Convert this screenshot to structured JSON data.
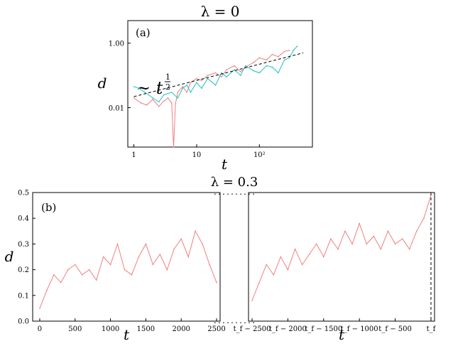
{
  "chart_data": [
    {
      "type": "line",
      "panel_label": "(a)",
      "title": "λ = 0",
      "xlabel": "t",
      "ylabel": "d",
      "x_scale": "log",
      "y_scale": "log",
      "xlim": [
        0.8,
        700
      ],
      "ylim": [
        0.0006,
        5
      ],
      "x_ticks": [
        1,
        10,
        100
      ],
      "x_tick_labels": [
        "1",
        "10",
        "10²"
      ],
      "y_ticks": [
        0.01,
        1
      ],
      "y_tick_labels": [
        "0.01",
        "1.00"
      ],
      "annotation": "~ t^(1/2)",
      "reference_line": {
        "style": "dashed",
        "color": "#000000",
        "x": [
          1,
          500
        ],
        "y": [
          0.022,
          0.5
        ]
      },
      "series": [
        {
          "color": "#f07f7f",
          "x": [
            1,
            1.3,
            1.6,
            2,
            2.5,
            3,
            3.5,
            4,
            4.3,
            4.6,
            5,
            6,
            7,
            8,
            10,
            12,
            15,
            20,
            25,
            30,
            40,
            50,
            60,
            80,
            100,
            130,
            160,
            200,
            250,
            300
          ],
          "y": [
            0.02,
            0.014,
            0.012,
            0.018,
            0.011,
            0.016,
            0.02,
            0.014,
            0.0006,
            0.013,
            0.03,
            0.045,
            0.03,
            0.06,
            0.08,
            0.07,
            0.1,
            0.12,
            0.09,
            0.15,
            0.2,
            0.13,
            0.18,
            0.25,
            0.35,
            0.3,
            0.45,
            0.38,
            0.55,
            0.6
          ]
        },
        {
          "color": "#20c0c0",
          "x": [
            1,
            1.2,
            1.5,
            2,
            2.5,
            3,
            4,
            5,
            6,
            7,
            8,
            10,
            12,
            15,
            20,
            25,
            30,
            40,
            50,
            60,
            80,
            100,
            130,
            160,
            200,
            250,
            300,
            350,
            400
          ],
          "y": [
            0.045,
            0.04,
            0.03,
            0.02,
            0.015,
            0.025,
            0.03,
            0.02,
            0.04,
            0.05,
            0.03,
            0.06,
            0.04,
            0.08,
            0.05,
            0.12,
            0.09,
            0.15,
            0.1,
            0.2,
            0.14,
            0.12,
            0.2,
            0.18,
            0.12,
            0.3,
            0.35,
            0.6,
            0.8
          ]
        }
      ]
    },
    {
      "type": "line",
      "panel_label": "(b)",
      "title": "λ = 0.3",
      "xlabel": "t",
      "ylabel": "d",
      "ylim": [
        0,
        0.5
      ],
      "y_ticks": [
        0,
        0.1,
        0.2,
        0.3,
        0.4,
        0.5
      ],
      "y_tick_labels": [
        "0.0",
        "0.1",
        "0.2",
        "0.3",
        "0.4",
        "0.5"
      ],
      "break_marker": "..........",
      "left_segment": {
        "xlim": [
          -100,
          2550
        ],
        "x_ticks": [
          0,
          500,
          1000,
          1500,
          2000,
          2500
        ],
        "x_tick_labels": [
          "0",
          "500",
          "1000",
          "1500",
          "2000",
          "2500"
        ],
        "series": [
          {
            "color": "#f07f7f",
            "x": [
              0,
              100,
              200,
              300,
              400,
              500,
              600,
              700,
              800,
              900,
              1000,
              1100,
              1200,
              1300,
              1400,
              1500,
              1600,
              1700,
              1800,
              1900,
              2000,
              2100,
              2200,
              2300,
              2400,
              2500
            ],
            "y": [
              0.05,
              0.12,
              0.18,
              0.15,
              0.2,
              0.22,
              0.18,
              0.2,
              0.16,
              0.25,
              0.22,
              0.3,
              0.2,
              0.18,
              0.25,
              0.3,
              0.22,
              0.26,
              0.2,
              0.28,
              0.32,
              0.25,
              0.35,
              0.3,
              0.22,
              0.15
            ]
          }
        ]
      },
      "right_segment": {
        "xlim": [
          -2550,
          50
        ],
        "x_ticks": [
          -2500,
          -2000,
          -1500,
          -1000,
          -500,
          0
        ],
        "x_tick_labels": [
          "t_f − 2500",
          "t_f − 2000",
          "t_f − 1500",
          "t_f − 1000",
          "t_f − 500",
          "t_f"
        ],
        "series": [
          {
            "color": "#f07f7f",
            "x": [
              -2500,
              -2400,
              -2300,
              -2200,
              -2100,
              -2000,
              -1900,
              -1800,
              -1700,
              -1600,
              -1500,
              -1400,
              -1300,
              -1200,
              -1100,
              -1000,
              -900,
              -800,
              -700,
              -600,
              -500,
              -400,
              -300,
              -200,
              -100,
              0
            ],
            "y": [
              0.08,
              0.15,
              0.22,
              0.18,
              0.25,
              0.2,
              0.28,
              0.22,
              0.26,
              0.3,
              0.25,
              0.32,
              0.28,
              0.35,
              0.3,
              0.38,
              0.3,
              0.33,
              0.28,
              0.35,
              0.3,
              0.32,
              0.28,
              0.35,
              0.4,
              0.49
            ]
          }
        ],
        "final_marker": {
          "style": "dashed",
          "color": "#000000",
          "x": 0
        }
      }
    }
  ]
}
